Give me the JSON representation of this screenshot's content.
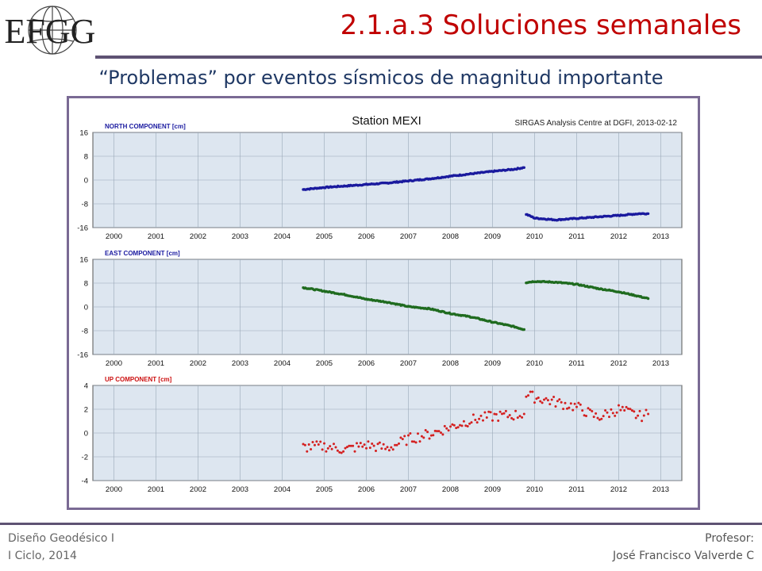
{
  "header": {
    "logo_text": "EFGG",
    "title": "2.1.a.3 Soluciones semanales",
    "subtitle": "“Problemas” por eventos sísmicos de magnitud importante"
  },
  "footer": {
    "left_line1": "Diseño Geodésico I",
    "left_line2": "I Ciclo, 2014",
    "right_line1": "Profesor:",
    "right_line2": "José Francisco Valverde C"
  },
  "colors": {
    "title": "#c00000",
    "rule": "#5e5273",
    "north": "#1a1a9e",
    "east": "#1f6b1f",
    "up": "#d42020",
    "plot_bg": "#dde6f0"
  },
  "chart_data": {
    "type": "scatter",
    "title": "Station MEXI",
    "note": "SIRGAS Analysis Centre at DGFI, 2013-02-12",
    "x_ticks": [
      "2000",
      "2001",
      "2002",
      "2003",
      "2004",
      "2005",
      "2006",
      "2007",
      "2008",
      "2009",
      "2010",
      "2011",
      "2012",
      "2013"
    ],
    "xlim": [
      1999.5,
      2013.5
    ],
    "panels": [
      {
        "name": "NORTH COMPONENT [cm]",
        "color": "#1a1a9e",
        "ylim": [
          -16,
          16
        ],
        "y_ticks": [
          "16",
          "8",
          "0",
          "-8",
          "-16"
        ],
        "segments": [
          {
            "x": [
              2004.5,
              2005.0,
              2005.5,
              2006.0,
              2006.5,
              2007.0,
              2007.5,
              2008.0,
              2008.5,
              2009.0,
              2009.5,
              2009.75
            ],
            "y": [
              -3.2,
              -2.5,
              -2.0,
              -1.5,
              -1.0,
              -0.3,
              0.4,
              1.3,
              2.1,
              2.9,
              3.6,
              4.2
            ]
          },
          {
            "x": [
              2009.8,
              2010.0,
              2010.5,
              2011.0,
              2011.5,
              2012.0,
              2012.5,
              2012.7
            ],
            "y": [
              -11.5,
              -12.8,
              -13.4,
              -12.9,
              -12.4,
              -11.9,
              -11.3,
              -11.3
            ]
          }
        ]
      },
      {
        "name": "EAST COMPONENT [cm]",
        "color": "#1f6b1f",
        "ylim": [
          -16,
          16
        ],
        "y_ticks": [
          "16",
          "8",
          "0",
          "-8",
          "-16"
        ],
        "segments": [
          {
            "x": [
              2004.5,
              2005.0,
              2005.5,
              2006.0,
              2006.5,
              2007.0,
              2007.5,
              2008.0,
              2008.5,
              2009.0,
              2009.5,
              2009.75
            ],
            "y": [
              6.5,
              5.3,
              4.1,
              2.6,
              1.6,
              0.1,
              -0.6,
              -2.2,
              -3.4,
              -5.1,
              -6.6,
              -7.6
            ]
          },
          {
            "x": [
              2009.8,
              2010.0,
              2010.5,
              2011.0,
              2011.5,
              2012.0,
              2012.5,
              2012.7
            ],
            "y": [
              8.2,
              8.6,
              8.3,
              7.6,
              6.2,
              5.1,
              3.5,
              2.8
            ]
          }
        ]
      },
      {
        "name": "UP COMPONENT [cm]",
        "color": "#d42020",
        "ylim": [
          -4,
          4
        ],
        "y_ticks": [
          "4",
          "2",
          "0",
          "-2",
          "-4"
        ],
        "segments": [
          {
            "x": [
              2004.5,
              2005.0,
              2005.5,
              2006.0,
              2006.5,
              2007.0,
              2007.5,
              2008.0,
              2008.5,
              2009.0,
              2009.5,
              2009.75
            ],
            "y": [
              -1.2,
              -1.1,
              -1.4,
              -1.0,
              -1.3,
              -0.5,
              -0.1,
              0.5,
              1.1,
              1.4,
              1.5,
              1.6
            ]
          },
          {
            "x": [
              2009.8,
              2010.0,
              2010.5,
              2011.0,
              2011.5,
              2012.0,
              2012.5,
              2012.7
            ],
            "y": [
              3.2,
              3.0,
              2.6,
              2.2,
              1.3,
              2.0,
              1.4,
              1.6
            ]
          }
        ]
      }
    ]
  }
}
